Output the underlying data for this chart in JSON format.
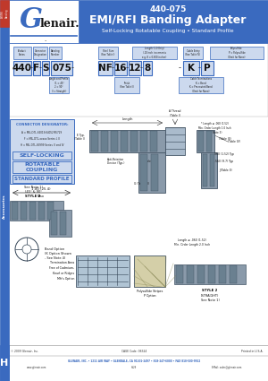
{
  "title_line1": "440-075",
  "title_line2": "EMI/RFI Banding Adapter",
  "title_line3": "Self-Locking Rotatable Coupling • Standard Profile",
  "header_bg": "#3a6abf",
  "logo_bg": "#ffffff",
  "side_bar_color": "#3a6abf",
  "red_tab_color": "#c0392b",
  "part_number_boxes": [
    "440",
    "F",
    "S",
    "075",
    "NF",
    "16",
    "12",
    "8",
    "K",
    "P"
  ],
  "footer_text": "GLENAIR, INC. • 1211 AIR WAY • GLENDALE, CA 91201-2497 • 818-247-6000 • FAX 818-500-9912",
  "footer_sub1": "www.glenair.com",
  "footer_sub2": "H-29",
  "footer_sub3": "EMail: sales@glenair.com",
  "copyright": "© 2009 Glenair, Inc.",
  "cage_code": "CAGE Code: 06324",
  "printed": "Printed in U.S.A.",
  "page_id": "H",
  "body_bg": "#f5f5f5",
  "white": "#ffffff",
  "light_blue_box": "#ccd9ee",
  "medium_blue": "#3a6abf",
  "dark_text": "#111111",
  "gray_connector": "#8a9aaa",
  "gray_connector2": "#6a8090"
}
